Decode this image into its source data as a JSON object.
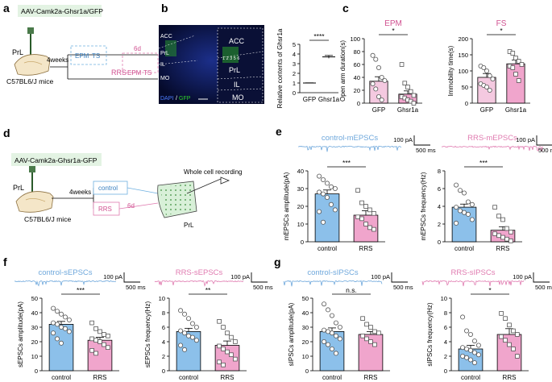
{
  "panels": {
    "a": {
      "letter": "a",
      "virus": "AAV-Camk2a-Ghsr1a/GFP",
      "region": "PrL",
      "duration": "4weeks",
      "mice": "C57BL6/J mice",
      "tests": [
        "EPM",
        "TS"
      ],
      "rrs": "RRS",
      "rrs_days": "6d",
      "tests_after": [
        "EPM",
        "TS"
      ]
    },
    "b": {
      "letter": "b",
      "regions_left": [
        "ACC",
        "PrL",
        "IL",
        "MO"
      ],
      "regions_right": [
        "ACC",
        "PrL",
        "IL",
        "MO"
      ],
      "layers": "1 2 3 5 6",
      "stain": "DAPI",
      "stain2": "GFP"
    },
    "c": {
      "letter": "c"
    },
    "d": {
      "letter": "d",
      "virus": "AAV-Camk2a-Ghsr1a-GFP",
      "region": "PrL",
      "duration": "4weeks",
      "mice": "C57BL6/J mice",
      "control": "control",
      "rrs": "RRS",
      "rrs_days": "6d",
      "recording": "Whole cell recording",
      "slice_label": "PrL"
    },
    "e": {
      "letter": "e",
      "trace_left": "control-mEPSCs",
      "trace_right": "RRS-mEPSCs",
      "scale_amp": "100 pA",
      "scale_time": "500 ms"
    },
    "f": {
      "letter": "f",
      "trace_left": "control-sEPSCs",
      "trace_right": "RRS-sEPSCs",
      "scale_amp": "100 pA",
      "scale_time": "500 ms"
    },
    "g": {
      "letter": "g",
      "trace_left": "control-sIPSCs",
      "trace_right": "RRS-sIPSCs",
      "scale_amp": "100 pA",
      "scale_time": "500 ms"
    }
  },
  "colors": {
    "blue": "#8cc0ea",
    "pink": "#f0a5cc",
    "gray": "#d9d9d9",
    "trace_blue": "#6fa8dc",
    "trace_pink": "#e07bb0",
    "green": "#2a8a3a"
  },
  "chart_data": [
    {
      "id": "b",
      "type": "bar",
      "categories": [
        "GFP",
        "Ghsr1a"
      ],
      "values": [
        1.0,
        3.7
      ],
      "errors": [
        0.02,
        0.15
      ],
      "ylabel": "Relative contents of Ghsr1a",
      "ylim": [
        0,
        5
      ],
      "yticks": [
        0,
        1,
        2,
        3,
        4,
        5
      ],
      "sig": "****"
    },
    {
      "id": "c-epm",
      "type": "bar",
      "title": "EPM",
      "categories": [
        "GFP",
        "Ghsr1a"
      ],
      "values": [
        34,
        14
      ],
      "errors": [
        7,
        5
      ],
      "ylabel": "Open arm duration(s)",
      "ylim": [
        0,
        100
      ],
      "yticks": [
        0,
        20,
        40,
        60,
        80,
        100
      ],
      "sig": "*",
      "points": [
        [
          74,
          68,
          55,
          40,
          35,
          30,
          22,
          10,
          5
        ],
        [
          60,
          31,
          25,
          18,
          12,
          10,
          8,
          5,
          3,
          0
        ]
      ]
    },
    {
      "id": "c-fs",
      "type": "bar",
      "title": "FS",
      "categories": [
        "GFP",
        "Ghsr1a"
      ],
      "values": [
        80,
        122
      ],
      "errors": [
        12,
        12
      ],
      "ylabel": "Immobility time(s)",
      "ylim": [
        0,
        200
      ],
      "yticks": [
        0,
        50,
        100,
        150,
        200
      ],
      "sig": "*",
      "points": [
        [
          115,
          110,
          100,
          85,
          75,
          60,
          55,
          50,
          40
        ],
        [
          160,
          155,
          140,
          130,
          120,
          115,
          110,
          90,
          70
        ]
      ]
    },
    {
      "id": "e-amp",
      "type": "bar",
      "categories": [
        "control",
        "RRS"
      ],
      "values": [
        27,
        15
      ],
      "errors": [
        2.2,
        2.5
      ],
      "ylabel": "mEPSCs amplitude(pA)",
      "ylim": [
        0,
        40
      ],
      "yticks": [
        0,
        10,
        20,
        30,
        40
      ],
      "sig": "***",
      "points": [
        [
          37,
          35,
          33,
          31,
          30,
          28,
          27,
          25,
          21,
          18,
          17,
          11
        ],
        [
          29,
          22,
          20,
          18,
          16,
          14,
          13,
          10,
          8,
          7
        ]
      ]
    },
    {
      "id": "e-freq",
      "type": "bar",
      "categories": [
        "control",
        "RRS"
      ],
      "values": [
        3.9,
        1.3
      ],
      "errors": [
        0.35,
        0.4
      ],
      "ylabel": "mEPSCs frequency(Hz)",
      "ylim": [
        0,
        8
      ],
      "yticks": [
        0,
        2,
        4,
        6,
        8
      ],
      "sig": "***",
      "points": [
        [
          6.4,
          5.8,
          5.5,
          4.5,
          4.2,
          3.9,
          3.5,
          3.3,
          3.1,
          2.5,
          2.1
        ],
        [
          3.9,
          2.9,
          2.5,
          1.5,
          1.1,
          0.9,
          0.7,
          0.5,
          0.3,
          0.1
        ]
      ]
    },
    {
      "id": "f-amp",
      "type": "bar",
      "categories": [
        "control",
        "RRS"
      ],
      "values": [
        32,
        21
      ],
      "errors": [
        2,
        2
      ],
      "ylabel": "sEPSCs amplitude(pA)",
      "ylim": [
        0,
        50
      ],
      "yticks": [
        0,
        10,
        20,
        30,
        40,
        50
      ],
      "sig": "***",
      "points": [
        [
          43,
          41,
          39,
          37,
          35,
          33,
          32,
          30,
          29,
          27,
          26,
          22,
          19
        ],
        [
          33,
          29,
          27,
          25,
          24,
          22,
          21,
          20,
          18,
          16,
          14,
          12
        ]
      ]
    },
    {
      "id": "f-freq",
      "type": "bar",
      "categories": [
        "control",
        "RRS"
      ],
      "values": [
        5.4,
        3.5
      ],
      "errors": [
        0.45,
        0.6
      ],
      "ylabel": "sEPSCs frequency(Hz)",
      "ylim": [
        0,
        10
      ],
      "yticks": [
        0,
        2,
        4,
        6,
        8,
        10
      ],
      "sig": "**",
      "points": [
        [
          8.3,
          7.8,
          7.2,
          6.5,
          6.0,
          5.5,
          5.2,
          4.8,
          4.6,
          4.2,
          3.5,
          2.9
        ],
        [
          6.8,
          6.0,
          5.2,
          4.6,
          4.0,
          3.4,
          3.0,
          2.6,
          2.2,
          1.6,
          1.2,
          0.8
        ]
      ]
    },
    {
      "id": "g-amp",
      "type": "bar",
      "categories": [
        "control",
        "RRS"
      ],
      "values": [
        27,
        25
      ],
      "errors": [
        2.5,
        2
      ],
      "ylabel": "sIPSCs amplitude(pA)",
      "ylim": [
        0,
        50
      ],
      "yticks": [
        0,
        10,
        20,
        30,
        40,
        50
      ],
      "sig": "n.s.",
      "points": [
        [
          46,
          42,
          38,
          33,
          30,
          28,
          27,
          26,
          24,
          22,
          20,
          18,
          15,
          12
        ],
        [
          36,
          32,
          30,
          27,
          26,
          24,
          22,
          20,
          18
        ]
      ]
    },
    {
      "id": "g-freq",
      "type": "bar",
      "categories": [
        "control",
        "RRS"
      ],
      "values": [
        3.0,
        5.0
      ],
      "errors": [
        0.5,
        0.8
      ],
      "ylabel": "sIPSCs frequency(Hz)",
      "ylim": [
        0,
        10
      ],
      "yticks": [
        0,
        2,
        4,
        6,
        8,
        10
      ],
      "sig": "*",
      "points": [
        [
          7.4,
          5.5,
          5.0,
          4.1,
          3.5,
          3.2,
          3.0,
          2.8,
          2.5,
          2.2,
          2.0,
          1.8,
          1.5,
          1.1
        ],
        [
          7.9,
          7.2,
          6.3,
          5.5,
          5.0,
          4.7,
          4.2,
          3.6,
          3.0,
          2.0
        ]
      ]
    }
  ]
}
